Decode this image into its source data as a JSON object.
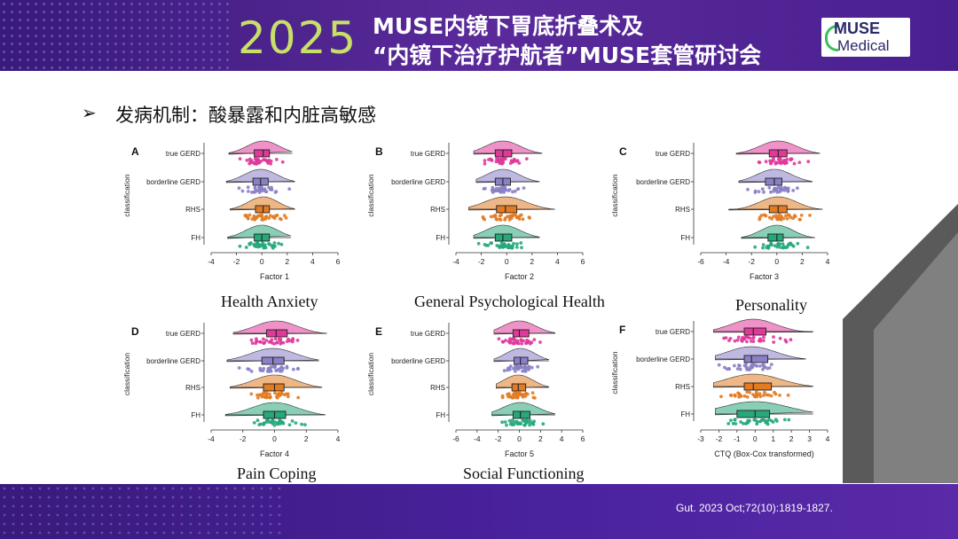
{
  "header": {
    "year": "2025",
    "title_line1": "MUSE内镜下胃底折叠术及",
    "title_line2": "“内镜下治疗护航者”MUSE套管研讨会",
    "logo_line1": "MUSE",
    "logo_line2": "Medical"
  },
  "slide": {
    "bullet": "➢",
    "subtitle": "发病机制：酸暴露和内脏高敏感"
  },
  "footer": {
    "citation": "Gut. 2023 Oct;72(10):1819-1827."
  },
  "captions": [
    "Health Anxiety",
    "General Psychological Health",
    "Personality",
    "Pain Coping",
    "Social Functioning"
  ],
  "colors": {
    "true GERD": "#e0399a",
    "borderline GERD": "#8a80c8",
    "RHS": "#e27b22",
    "FH": "#26a87a"
  },
  "chart_data": [
    {
      "type": "raincloud",
      "panel": "A",
      "xlabel": "Factor 1",
      "ylabel": "classification",
      "xlim": [
        -4,
        6
      ],
      "xticks": [
        -4,
        -2,
        0,
        2,
        4,
        6
      ],
      "groups": [
        {
          "name": "true GERD",
          "q1": -0.6,
          "median": 0.1,
          "q3": 0.6,
          "whisker_low": -2.6,
          "whisker_high": 2.4
        },
        {
          "name": "borderline GERD",
          "q1": -0.7,
          "median": -0.1,
          "q3": 0.5,
          "whisker_low": -2.8,
          "whisker_high": 2.6
        },
        {
          "name": "RHS",
          "q1": -0.5,
          "median": 0.1,
          "q3": 0.6,
          "whisker_low": -2.5,
          "whisker_high": 2.6
        },
        {
          "name": "FH",
          "q1": -0.6,
          "median": 0.0,
          "q3": 0.6,
          "whisker_low": -2.7,
          "whisker_high": 2.3
        }
      ]
    },
    {
      "type": "raincloud",
      "panel": "B",
      "xlabel": "Factor 2",
      "ylabel": "classification",
      "xlim": [
        -4,
        6
      ],
      "xticks": [
        -4,
        -2,
        0,
        2,
        4,
        6
      ],
      "groups": [
        {
          "name": "true GERD",
          "q1": -0.9,
          "median": -0.3,
          "q3": 0.4,
          "whisker_low": -2.6,
          "whisker_high": 2.8
        },
        {
          "name": "borderline GERD",
          "q1": -0.9,
          "median": -0.3,
          "q3": 0.3,
          "whisker_low": -2.4,
          "whisker_high": 2.6
        },
        {
          "name": "RHS",
          "q1": -0.8,
          "median": -0.1,
          "q3": 0.8,
          "whisker_low": -3.0,
          "whisker_high": 3.8
        },
        {
          "name": "FH",
          "q1": -0.9,
          "median": -0.3,
          "q3": 0.4,
          "whisker_low": -2.6,
          "whisker_high": 2.6
        }
      ]
    },
    {
      "type": "raincloud",
      "panel": "C",
      "xlabel": "Factor 3",
      "ylabel": "classification",
      "xlim": [
        -6,
        4
      ],
      "xticks": [
        -6,
        -4,
        -2,
        0,
        2,
        4
      ],
      "groups": [
        {
          "name": "true GERD",
          "q1": -0.6,
          "median": 0.1,
          "q3": 0.8,
          "whisker_low": -3.2,
          "whisker_high": 3.4
        },
        {
          "name": "borderline GERD",
          "q1": -0.9,
          "median": -0.2,
          "q3": 0.4,
          "whisker_low": -3.0,
          "whisker_high": 2.8
        },
        {
          "name": "RHS",
          "q1": -0.6,
          "median": 0.1,
          "q3": 0.8,
          "whisker_low": -3.8,
          "whisker_high": 3.6
        },
        {
          "name": "FH",
          "q1": -0.7,
          "median": 0.0,
          "q3": 0.5,
          "whisker_low": -2.8,
          "whisker_high": 3.0
        }
      ]
    },
    {
      "type": "raincloud",
      "panel": "D",
      "xlabel": "Factor 4",
      "ylabel": "classification",
      "xlim": [
        -4,
        4
      ],
      "xticks": [
        -4,
        -2,
        0,
        2,
        4
      ],
      "groups": [
        {
          "name": "true GERD",
          "q1": -0.5,
          "median": 0.1,
          "q3": 0.8,
          "whisker_low": -2.6,
          "whisker_high": 3.3
        },
        {
          "name": "borderline GERD",
          "q1": -0.8,
          "median": -0.1,
          "q3": 0.6,
          "whisker_low": -3.0,
          "whisker_high": 2.8
        },
        {
          "name": "RHS",
          "q1": -0.7,
          "median": 0.0,
          "q3": 0.6,
          "whisker_low": -2.8,
          "whisker_high": 3.0
        },
        {
          "name": "FH",
          "q1": -0.7,
          "median": 0.0,
          "q3": 0.7,
          "whisker_low": -3.1,
          "whisker_high": 3.2
        }
      ]
    },
    {
      "type": "raincloud",
      "panel": "E",
      "xlabel": "Factor 5",
      "ylabel": "classification",
      "xlim": [
        -6,
        6
      ],
      "xticks": [
        -6,
        -4,
        -2,
        0,
        2,
        4,
        6
      ],
      "groups": [
        {
          "name": "true GERD",
          "q1": -0.6,
          "median": 0.0,
          "q3": 0.9,
          "whisker_low": -2.4,
          "whisker_high": 3.4
        },
        {
          "name": "borderline GERD",
          "q1": -0.5,
          "median": 0.1,
          "q3": 0.8,
          "whisker_low": -2.4,
          "whisker_high": 2.8
        },
        {
          "name": "RHS",
          "q1": -0.7,
          "median": -0.1,
          "q3": 0.6,
          "whisker_low": -2.2,
          "whisker_high": 2.8
        },
        {
          "name": "FH",
          "q1": -0.6,
          "median": 0.1,
          "q3": 1.0,
          "whisker_low": -2.6,
          "whisker_high": 3.4
        }
      ]
    },
    {
      "type": "raincloud",
      "panel": "F",
      "xlabel": "CTQ (Box-Cox transformed)",
      "ylabel": "classification",
      "xlim": [
        -3,
        4
      ],
      "xticks": [
        -3,
        -2,
        -1,
        0,
        1,
        2,
        3,
        4
      ],
      "groups": [
        {
          "name": "true GERD",
          "q1": -0.6,
          "median": -0.1,
          "q3": 0.6,
          "whisker_low": -2.3,
          "whisker_high": 3.2
        },
        {
          "name": "borderline GERD",
          "q1": -0.6,
          "median": -0.2,
          "q3": 0.7,
          "whisker_low": -2.2,
          "whisker_high": 2.8
        },
        {
          "name": "RHS",
          "q1": -0.6,
          "median": -0.1,
          "q3": 0.9,
          "whisker_low": -2.3,
          "whisker_high": 3.2
        },
        {
          "name": "FH",
          "q1": -1.0,
          "median": 0.0,
          "q3": 0.8,
          "whisker_low": -2.2,
          "whisker_high": 3.2
        }
      ]
    }
  ]
}
